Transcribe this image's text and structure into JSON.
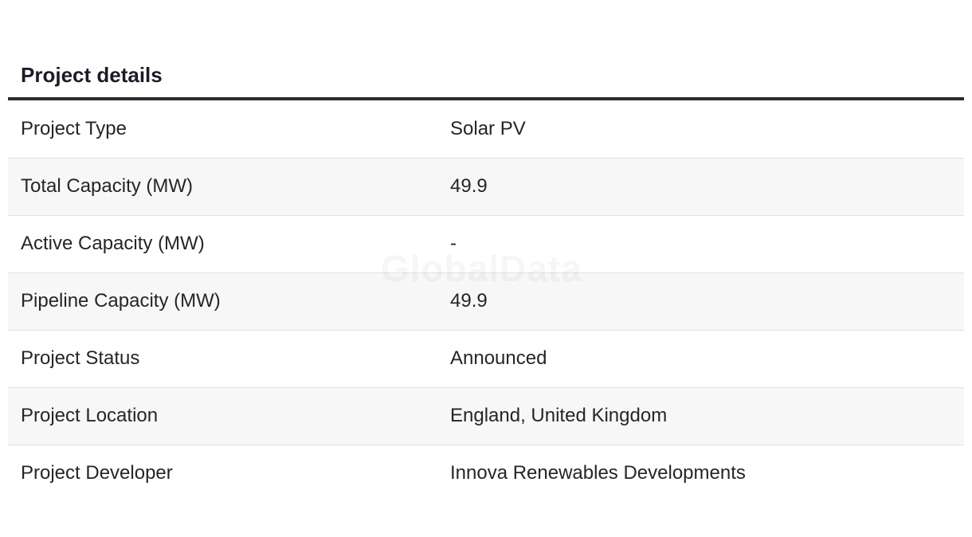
{
  "section": {
    "title": "Project details"
  },
  "rows": [
    {
      "label": "Project Type",
      "value": "Solar PV"
    },
    {
      "label": "Total Capacity (MW)",
      "value": "49.9"
    },
    {
      "label": "Active Capacity (MW)",
      "value": "-"
    },
    {
      "label": "Pipeline Capacity (MW)",
      "value": "49.9"
    },
    {
      "label": "Project Status",
      "value": "Announced"
    },
    {
      "label": "Project Location",
      "value": "England, United Kingdom"
    },
    {
      "label": "Project Developer",
      "value": "Innova Renewables Developments"
    }
  ],
  "watermark": {
    "text": "GlobalData"
  }
}
